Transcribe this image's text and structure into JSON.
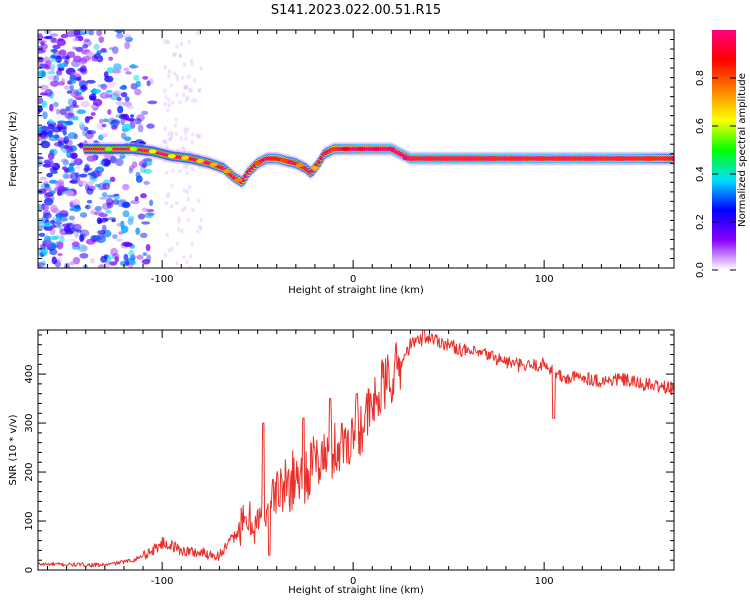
{
  "title": "S141.2023.022.00.51.R15",
  "colors": {
    "snr_line": "#e8302a",
    "spectrogram_ridge": "#ff2b1a",
    "background": "#ffffff"
  },
  "chart_data": [
    {
      "type": "heatmap",
      "name": "spectrogram",
      "xlabel": "Height of straight line (km)",
      "ylabel": "Frequency (Hz)",
      "xlim": [
        -165,
        168
      ],
      "ylim": [
        -25,
        25
      ],
      "xticks": [
        -100,
        0,
        100
      ],
      "yticks": [
        -20,
        -10,
        0,
        10,
        20
      ],
      "colorbar": {
        "label": "Normalized spectral amplitude",
        "range": [
          0,
          1
        ],
        "ticks": [
          "0.0",
          "0.2",
          "0.4",
          "0.6",
          "0.8"
        ],
        "colormap": [
          "#ffffff",
          "#8800ff",
          "#0000ff",
          "#00e0ff",
          "#00ff00",
          "#ffff00",
          "#ff8000",
          "#ff0000",
          "#ff0080"
        ]
      },
      "ridge_frequency": {
        "x": [
          -135,
          -125,
          -115,
          -105,
          -95,
          -85,
          -75,
          -68,
          -62,
          -58,
          -55,
          -50,
          -45,
          -40,
          -35,
          -30,
          -25,
          -22,
          -18,
          -15,
          -10,
          -5,
          0,
          10,
          20,
          25,
          30,
          50,
          70,
          90,
          110,
          130,
          150,
          168
        ],
        "y": [
          0,
          0,
          0,
          -0.5,
          -1.5,
          -2,
          -3,
          -4,
          -6,
          -7,
          -5,
          -3,
          -2,
          -2,
          -2.5,
          -3,
          -4,
          -5,
          -3,
          -1,
          0,
          0,
          0,
          0,
          0,
          -1,
          -2,
          -2,
          -2,
          -2,
          -2,
          -2,
          -2,
          -2
        ]
      },
      "ridge_amplitude": {
        "x": [
          -135,
          -110,
          -90,
          -70,
          -60,
          -50,
          -40,
          -30,
          -20,
          0,
          20,
          30,
          60,
          80,
          100,
          120,
          150,
          168
        ],
        "y": [
          0.4,
          0.45,
          0.5,
          0.55,
          0.6,
          0.65,
          0.7,
          0.6,
          0.55,
          0.8,
          0.85,
          0.9,
          0.95,
          0.9,
          0.85,
          0.9,
          0.8,
          0.6
        ]
      }
    },
    {
      "type": "line",
      "name": "snr",
      "xlabel": "Height of straight line (km)",
      "ylabel": "SNR (10 * v/v)",
      "xlim": [
        -165,
        168
      ],
      "ylim": [
        0,
        490
      ],
      "xticks": [
        -100,
        0,
        100
      ],
      "yticks": [
        0,
        100,
        200,
        300,
        400
      ],
      "series": [
        {
          "trend": {
            "x": [
              -165,
              -130,
              -115,
              -105,
              -100,
              -95,
              -90,
              -80,
              -70,
              -60,
              -55,
              -50,
              -45,
              -40,
              -35,
              -30,
              -25,
              -20,
              -15,
              -10,
              -5,
              0,
              5,
              10,
              15,
              20,
              25,
              30,
              35,
              40,
              50,
              60,
              70,
              80,
              90,
              100,
              104,
              110,
              120,
              130,
              140,
              150,
              160,
              168
            ],
            "y": [
              12,
              10,
              20,
              40,
              55,
              50,
              40,
              35,
              30,
              80,
              100,
              95,
              130,
              160,
              170,
              190,
              195,
              220,
              230,
              245,
              260,
              275,
              300,
              330,
              370,
              395,
              420,
              460,
              470,
              475,
              460,
              445,
              440,
              425,
              415,
              420,
              410,
              390,
              395,
              385,
              390,
              380,
              375,
              370
            ]
          },
          "spikes": [
            {
              "x": -47,
              "y": 300
            },
            {
              "x": -44,
              "y": 30
            },
            {
              "x": -26,
              "y": 310
            },
            {
              "x": -12,
              "y": 350
            },
            {
              "x": 2,
              "y": 360
            },
            {
              "x": 37,
              "y": 500
            },
            {
              "x": 105,
              "y": 310
            }
          ]
        }
      ]
    }
  ]
}
